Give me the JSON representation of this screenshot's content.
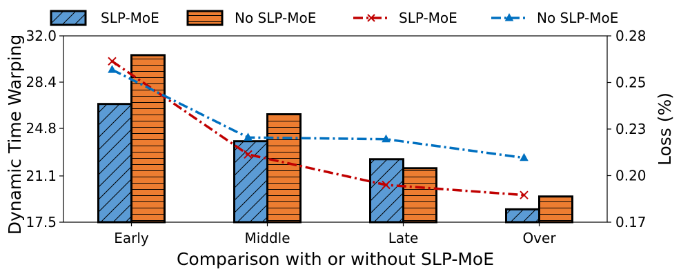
{
  "chart_data": {
    "type": "bar+line",
    "categories": [
      "Early",
      "Middle",
      "Late",
      "Over"
    ],
    "xlabel": "Comparison with or without SLP-MoE",
    "ylabel_left": "Dynamic Time Warping",
    "ylabel_right": "Loss (%)",
    "ylim_left": [
      17.5,
      32.0
    ],
    "ylim_right": [
      0.17,
      0.28
    ],
    "yticks_left": [
      "17.5",
      "21.1",
      "24.8",
      "28.4",
      "32.0"
    ],
    "yticks_right": [
      "0.17",
      "0.20",
      "0.23",
      "0.25",
      "0.28"
    ],
    "bar_series": [
      {
        "name": "SLP-MoE",
        "values": [
          26.7,
          23.8,
          22.4,
          18.5
        ],
        "color": "#5b9bd5",
        "hatch": "diagonal"
      },
      {
        "name": "No SLP-MoE",
        "values": [
          30.5,
          25.9,
          21.7,
          19.5
        ],
        "color": "#ed7d31",
        "hatch": "horizontal"
      }
    ],
    "line_series": [
      {
        "name": "SLP-MoE",
        "values": [
          0.265,
          0.21,
          0.192,
          0.186
        ],
        "color": "#c00000",
        "marker": "x",
        "style": "dash-dot"
      },
      {
        "name": "No SLP-MoE",
        "values": [
          0.26,
          0.22,
          0.219,
          0.208
        ],
        "color": "#0070c0",
        "marker": "triangle",
        "style": "dash-dot"
      }
    ],
    "legend_position": "top",
    "grid": false
  }
}
